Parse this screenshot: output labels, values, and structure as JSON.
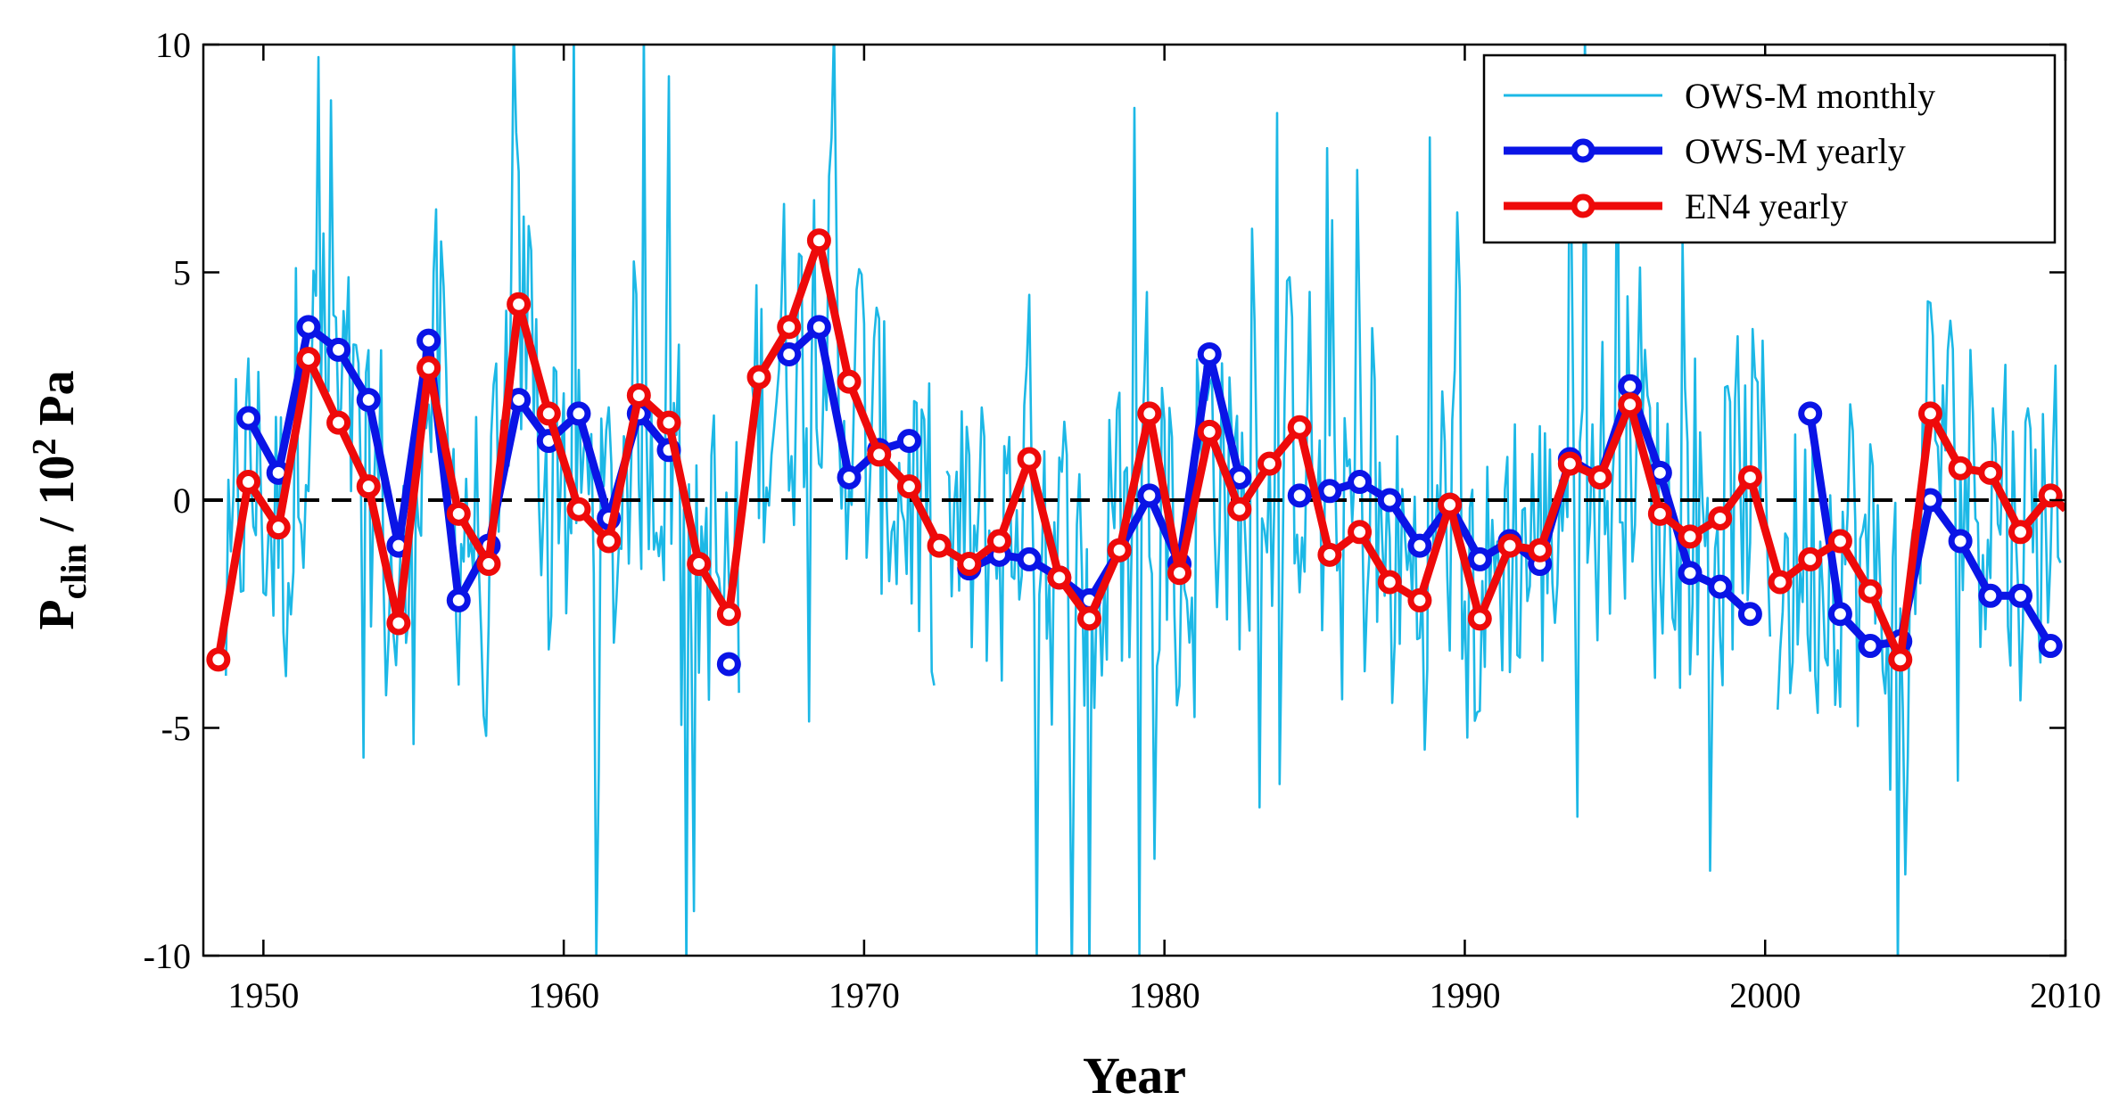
{
  "chart_data": {
    "type": "line",
    "title": "",
    "xlabel": "Year",
    "ylabel": {
      "base": "P",
      "subscript": "clin",
      "middle": " / 10",
      "superscript": "2",
      "unit": " Pa"
    },
    "xlim": [
      1948,
      2010
    ],
    "ylim": [
      -10,
      10
    ],
    "xticks": [
      1950,
      1960,
      1970,
      1980,
      1990,
      2000,
      2010
    ],
    "yticks": [
      -10,
      -5,
      0,
      5,
      10
    ],
    "xtick_labels": [
      "1950",
      "1960",
      "1970",
      "1980",
      "1990",
      "2000",
      "2010"
    ],
    "ytick_labels": [
      "-10",
      "-5",
      "0",
      "5",
      "10"
    ],
    "legend_position": "top-right",
    "zero_line": {
      "y": 0,
      "style": "dashed",
      "color": "#000000"
    },
    "series": [
      {
        "name": "OWS-M monthly",
        "color": "#1cb8e6",
        "style": "thin-line",
        "seed": 12345,
        "amplitude_base": 3.6,
        "months_start": 1948.75,
        "months_end": 2009.9,
        "gaps": [
          [
            1965.9,
            1966.2
          ],
          [
            1972.4,
            1972.7
          ],
          [
            2000.2,
            2000.4
          ]
        ]
      },
      {
        "name": "OWS-M yearly",
        "color": "#0a14e6",
        "style": "thick-line-circle",
        "segments": [
          {
            "x": [
              1949.5,
              1950.5,
              1951.5,
              1952.5,
              1953.5,
              1954.5,
              1955.5,
              1956.5,
              1957.5,
              1958.5,
              1959.5,
              1960.5,
              1961.5,
              1962.5,
              1963.5
            ],
            "y": [
              1.8,
              0.6,
              3.8,
              3.3,
              2.2,
              -1.0,
              3.5,
              -2.2,
              -1.0,
              2.2,
              1.3,
              1.9,
              -0.4,
              1.9,
              1.1
            ]
          },
          {
            "x": [
              1965.5
            ],
            "y": [
              -3.6
            ]
          },
          {
            "x": [
              1967.5,
              1968.5,
              1969.5,
              1970.5,
              1971.5
            ],
            "y": [
              3.2,
              3.8,
              0.5,
              1.1,
              1.3
            ]
          },
          {
            "x": [
              1973.5,
              1974.5,
              1975.5,
              1976.5,
              1977.5,
              1978.5,
              1979.5,
              1980.5,
              1981.5,
              1982.5
            ],
            "y": [
              -1.5,
              -1.2,
              -1.3,
              -1.7,
              -2.2,
              -1.1,
              0.1,
              -1.4,
              3.2,
              0.5
            ]
          },
          {
            "x": [
              1984.5,
              1985.5,
              1986.5,
              1987.5,
              1988.5,
              1989.5,
              1990.5,
              1991.5,
              1992.5,
              1993.5,
              1994.5,
              1995.5,
              1996.5,
              1997.5,
              1998.5,
              1999.5
            ],
            "y": [
              0.1,
              0.2,
              0.4,
              0.0,
              -1.0,
              -0.1,
              -1.3,
              -0.9,
              -1.4,
              0.9,
              0.5,
              2.5,
              0.6,
              -1.6,
              -1.9,
              -2.5
            ]
          },
          {
            "x": [
              2001.5,
              2002.5,
              2003.5,
              2004.5,
              2005.5,
              2006.5,
              2007.5,
              2008.5,
              2009.5
            ],
            "y": [
              1.9,
              -2.5,
              -3.2,
              -3.1,
              0.0,
              -0.9,
              -2.1,
              -2.1,
              -3.2
            ]
          }
        ]
      },
      {
        "name": "EN4 yearly",
        "color": "#ee0a0a",
        "style": "thick-line-circle",
        "segments": [
          {
            "x": [
              1948.5,
              1949.5,
              1950.5,
              1951.5,
              1952.5,
              1953.5,
              1954.5,
              1955.5,
              1956.5,
              1957.5,
              1958.5,
              1959.5,
              1960.5,
              1961.5,
              1962.5,
              1963.5,
              1964.5,
              1965.5,
              1966.5,
              1967.5,
              1968.5,
              1969.5,
              1970.5,
              1971.5,
              1972.5,
              1973.5,
              1974.5,
              1975.5,
              1976.5,
              1977.5,
              1978.5,
              1979.5,
              1980.5,
              1981.5,
              1982.5,
              1983.5,
              1984.5,
              1985.5,
              1986.5,
              1987.5,
              1988.5,
              1989.5,
              1990.5,
              1991.5,
              1992.5,
              1993.5,
              1994.5,
              1995.5,
              1996.5,
              1997.5,
              1998.5,
              1999.5,
              2000.5,
              2001.5,
              2002.5,
              2003.5,
              2004.5,
              2005.5,
              2006.5,
              2007.5,
              2008.5,
              2009.5,
              2010
            ],
            "y": [
              -3.5,
              0.4,
              -0.6,
              3.1,
              1.7,
              0.3,
              -2.7,
              2.9,
              -0.3,
              -1.4,
              4.3,
              1.9,
              -0.2,
              -0.9,
              2.3,
              1.7,
              -1.4,
              -2.5,
              2.7,
              3.8,
              5.7,
              2.6,
              1.0,
              0.3,
              -1.0,
              -1.4,
              -0.9,
              0.9,
              -1.7,
              -2.6,
              -1.1,
              1.9,
              -1.6,
              1.5,
              -0.2,
              0.8,
              1.6,
              -1.2,
              -0.7,
              -1.8,
              -2.2,
              -0.1,
              -2.6,
              -1.0,
              -1.1,
              0.8,
              0.5,
              2.1,
              -0.3,
              -0.8,
              -0.4,
              0.5,
              -1.8,
              -1.3,
              -0.9,
              -2.0,
              -3.5,
              1.9,
              0.7,
              0.6,
              -0.7,
              0.1,
              -0.2
            ]
          }
        ]
      }
    ]
  }
}
